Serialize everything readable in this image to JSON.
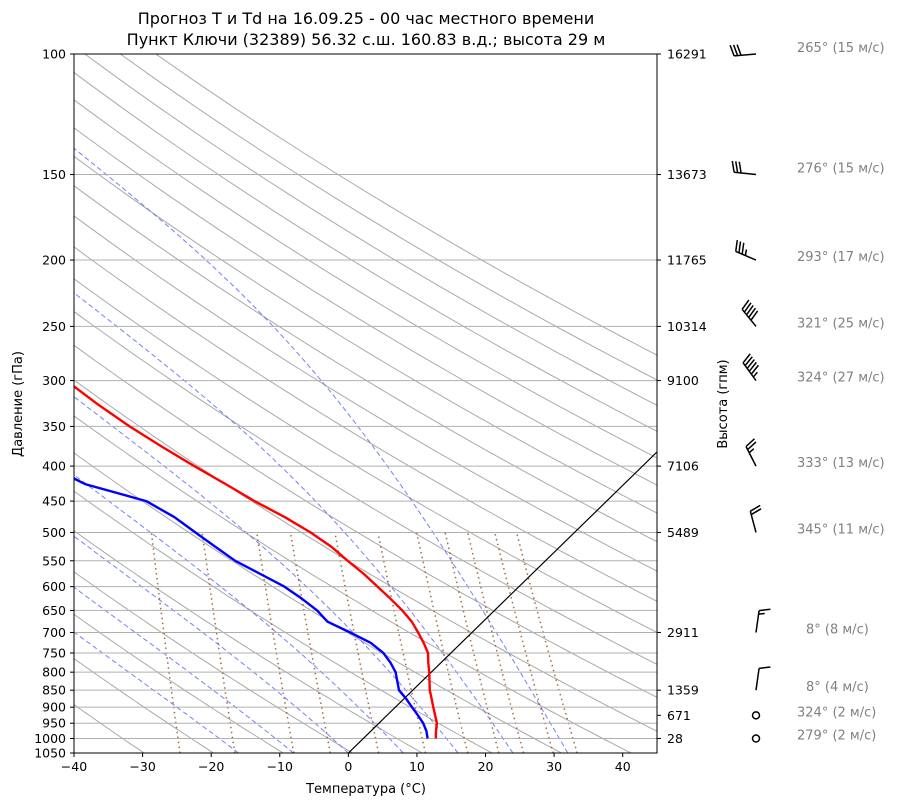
{
  "title_line1": "Прогноз T и Td на 16.09.25 - 00 час местного времени",
  "title_line2": "Пункт Ключи (32389) 56.32 с.ш. 160.83 в.д.; высота 29 м",
  "chart_data": {
    "type": "skew-t",
    "xlabel": "Температура (°C)",
    "ylabel": "Давление (гПа)",
    "y2label": "Высота (гпм)",
    "xlim": [
      -40,
      45
    ],
    "ylim": [
      1050,
      100
    ],
    "y_scale": "log",
    "grid": true,
    "x_ticks": [
      -40,
      -30,
      -20,
      -10,
      0,
      10,
      20,
      30,
      40
    ],
    "p_ticks": [
      100,
      150,
      200,
      250,
      300,
      350,
      400,
      450,
      500,
      550,
      600,
      650,
      700,
      750,
      800,
      850,
      900,
      950,
      1000,
      1050
    ],
    "height_labels": [
      {
        "p": 100,
        "label": "16291"
      },
      {
        "p": 150,
        "label": "13673"
      },
      {
        "p": 200,
        "label": "11765"
      },
      {
        "p": 250,
        "label": "10314"
      },
      {
        "p": 300,
        "label": "9100"
      },
      {
        "p": 400,
        "label": "7106"
      },
      {
        "p": 500,
        "label": "5489"
      },
      {
        "p": 700,
        "label": "2911"
      },
      {
        "p": 850,
        "label": "1359"
      },
      {
        "p": 925,
        "label": "671"
      },
      {
        "p": 1000,
        "label": "28"
      }
    ],
    "series": [
      {
        "key": "T",
        "color": "#ff0000",
        "p": [
          1000,
          975,
          950,
          925,
          900,
          875,
          850,
          825,
          800,
          775,
          750,
          725,
          700,
          675,
          650,
          625,
          600,
          575,
          550,
          525,
          500,
          475,
          450,
          425,
          400,
          375,
          350,
          325,
          300,
          275,
          250,
          225,
          200,
          175,
          150,
          125,
          100
        ],
        "t": [
          12.5,
          12.4,
          12.4,
          12.0,
          11.6,
          11.2,
          10.8,
          10.6,
          10.4,
          10.1,
          9.9,
          9.1,
          8.1,
          7.0,
          5.4,
          3.5,
          1.4,
          -0.8,
          -3.4,
          -6.0,
          -9.3,
          -13.3,
          -18.0,
          -22.5,
          -27.4,
          -32.4,
          -37.5,
          -42.5,
          -47.5,
          -52.3,
          -54.8,
          -56.3,
          -55.5,
          -57.8,
          -58.0,
          -61.0,
          -62.5
        ]
      },
      {
        "key": "Td",
        "color": "#0000ff",
        "p": [
          1000,
          975,
          950,
          925,
          900,
          875,
          850,
          825,
          800,
          775,
          750,
          725,
          700,
          675,
          650,
          625,
          600,
          575,
          550,
          525,
          500,
          475,
          450,
          425,
          400,
          375,
          350,
          325,
          300,
          275,
          250,
          225,
          200,
          175,
          150,
          125,
          100
        ],
        "t": [
          11.3,
          11.0,
          10.4,
          9.5,
          8.5,
          7.5,
          6.3,
          5.9,
          5.5,
          4.6,
          3.4,
          1.4,
          -1.8,
          -5.3,
          -7.0,
          -9.4,
          -12.2,
          -15.9,
          -19.8,
          -22.9,
          -26.1,
          -29.4,
          -33.8,
          -43.0,
          -48.5,
          -55.5,
          -62.0,
          -68.0,
          -75.0,
          -71.0,
          -68.5,
          -67.5,
          -66.5,
          -71.0,
          -71.5,
          -72.5,
          -74.0
        ]
      }
    ],
    "parcel_line": [
      {
        "p": 1050,
        "t": 0
      },
      {
        "p": 375,
        "t": 40.5
      }
    ],
    "background_lines": {
      "dry_adiabats": "grey solid",
      "moist_adiabats": "blue dashed",
      "mixing_ratio": "brown dotted"
    },
    "wind_barbs": [
      {
        "p": 100,
        "dir": 265,
        "speed": 15,
        "label": "265° (15 м/с)"
      },
      {
        "p": 150,
        "dir": 276,
        "speed": 15,
        "label": "276° (15 м/с)"
      },
      {
        "p": 200,
        "dir": 293,
        "speed": 17,
        "label": "293° (17 м/с)"
      },
      {
        "p": 250,
        "dir": 321,
        "speed": 25,
        "label": "321° (25 м/с)"
      },
      {
        "p": 300,
        "dir": 324,
        "speed": 27,
        "label": "324° (27 м/с)"
      },
      {
        "p": 400,
        "dir": 333,
        "speed": 13,
        "label": "333° (13 м/с)"
      },
      {
        "p": 500,
        "dir": 345,
        "speed": 11,
        "label": "345° (11 м/с)"
      },
      {
        "p": 700,
        "dir": 8,
        "speed": 8,
        "label": "8° (8 м/с)"
      },
      {
        "p": 850,
        "dir": 8,
        "speed": 4,
        "label": "8° (4 м/с)"
      },
      {
        "p": 925,
        "dir": 324,
        "speed": 2,
        "label": "324° (2 м/с)"
      },
      {
        "p": 1000,
        "dir": 279,
        "speed": 2,
        "label": "279° (2 м/с)"
      }
    ]
  }
}
